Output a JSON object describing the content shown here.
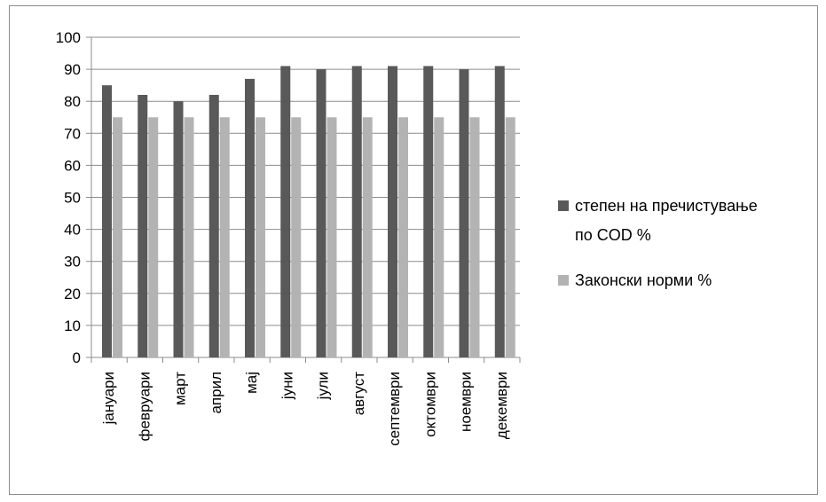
{
  "chart_data": {
    "type": "bar",
    "categories": [
      "јануари",
      "февруари",
      "март",
      "април",
      "мај",
      "јуни",
      "јули",
      "август",
      "септември",
      "октомври",
      "ноември",
      "декември"
    ],
    "series": [
      {
        "name": "степен на пречистување по COD %",
        "color": "#595959",
        "values": [
          85,
          82,
          80,
          82,
          87,
          91,
          90,
          91,
          91,
          91,
          90,
          91
        ]
      },
      {
        "name": "Законски норми %",
        "color": "#b3b3b3",
        "values": [
          75,
          75,
          75,
          75,
          75,
          75,
          75,
          75,
          75,
          75,
          75,
          75
        ]
      }
    ],
    "legend_lines": [
      [
        "степен на пречистување",
        "по COD %"
      ],
      [
        "Законски норми %"
      ]
    ],
    "yticks": [
      0,
      10,
      20,
      30,
      40,
      50,
      60,
      70,
      80,
      90,
      100
    ],
    "ylim": [
      0,
      100
    ],
    "grid": true,
    "legend_position": "right"
  }
}
